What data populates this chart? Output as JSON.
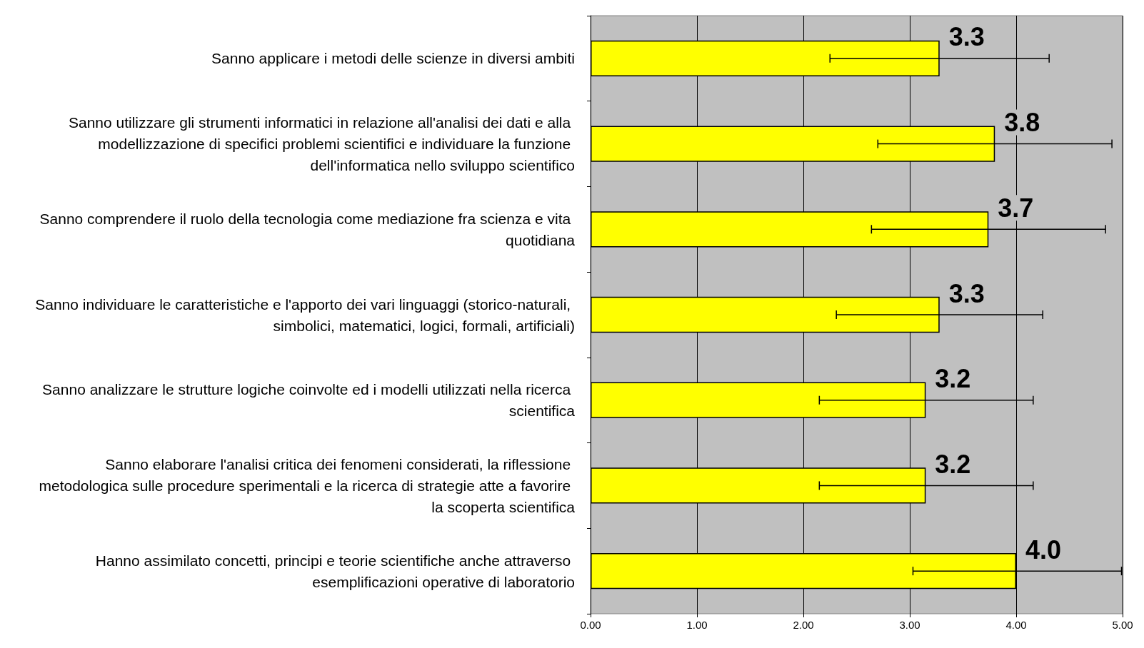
{
  "chart_data": {
    "type": "bar",
    "orientation": "horizontal",
    "categories": [
      "Sanno applicare i metodi delle scienze in diversi ambiti",
      "Sanno utilizzare gli strumenti informatici in relazione all'analisi dei dati e alla modellizzazione di specifici problemi scientifici e individuare la funzione dell'informatica nello sviluppo scientifico",
      "Sanno comprendere il ruolo della tecnologia come mediazione fra scienza e vita quotidiana",
      "Sanno individuare le caratteristiche e l'apporto dei vari linguaggi (storico-naturali, simbolici, matematici, logici, formali, artificiali)",
      "Sanno analizzare le strutture logiche coinvolte ed i modelli utilizzati nella ricerca scientifica",
      "Sanno elaborare l'analisi critica dei fenomeni considerati, la riflessione metodologica sulle procedure sperimentali e la ricerca di strategie atte a favorire la scoperta scientifica",
      "Hanno assimilato concetti, principi e teorie scientifiche anche attraverso esemplificazioni operative di laboratorio"
    ],
    "values": [
      3.28,
      3.8,
      3.74,
      3.28,
      3.15,
      3.15,
      4.0
    ],
    "value_labels": [
      "3.3",
      "3.8",
      "3.7",
      "3.3",
      "3.2",
      "3.2",
      "4.0"
    ],
    "errors": [
      [
        2.25,
        4.31
      ],
      [
        2.7,
        4.9
      ],
      [
        2.64,
        4.84
      ],
      [
        2.31,
        4.25
      ],
      [
        2.15,
        4.16
      ],
      [
        2.15,
        4.16
      ],
      [
        3.03,
        4.99
      ]
    ],
    "color": "#ffff00",
    "xlim": [
      0,
      5
    ],
    "xticks": [
      {
        "value": 0,
        "label": "0.00"
      },
      {
        "value": 1,
        "label": "1.00"
      },
      {
        "value": 2,
        "label": "2.00"
      },
      {
        "value": 3,
        "label": "3.00"
      },
      {
        "value": 4,
        "label": "4.00"
      },
      {
        "value": 5,
        "label": "5.00"
      }
    ],
    "grid": "x"
  }
}
